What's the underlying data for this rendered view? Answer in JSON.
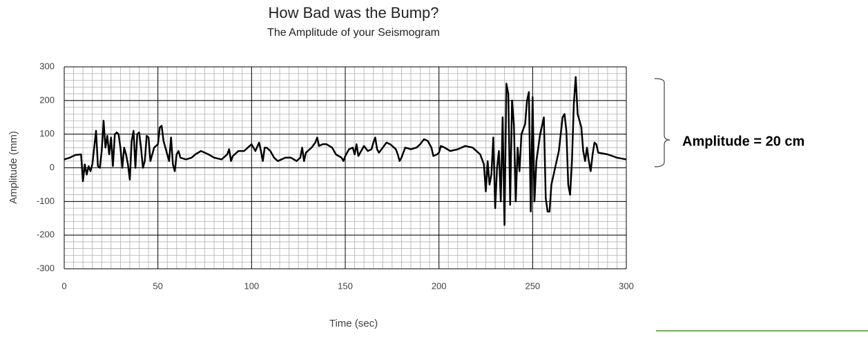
{
  "chart_data": {
    "type": "line",
    "title": "How Bad was the Bump?",
    "subtitle": "The Amplitude of your Seismogram",
    "x_label": "Time (sec)",
    "y_label": "Amplitude (mm)",
    "annotation": "Amplitude = 20 cm",
    "xlim": [
      0,
      300
    ],
    "xticks": [
      0,
      50,
      100,
      150,
      200,
      250,
      300
    ],
    "ylim": [
      -300,
      300
    ],
    "yticks": [
      -300,
      -200,
      -100,
      0,
      100,
      200,
      300
    ],
    "grid": true,
    "minor_grid": {
      "x": 5,
      "y": 20
    },
    "series": [
      {
        "color": "#000000",
        "x": [
          0,
          3,
          6,
          9,
          10,
          11,
          12,
          13,
          14,
          15,
          16,
          17,
          18,
          19,
          20,
          21,
          22,
          23,
          24,
          25,
          26,
          27,
          28,
          29,
          30,
          31,
          32,
          33,
          34,
          35,
          36,
          37,
          38,
          39,
          40,
          41,
          42,
          43,
          44,
          45,
          46,
          48,
          50,
          51,
          52,
          53,
          55,
          56,
          57,
          58,
          59,
          60,
          61,
          62,
          65,
          68,
          70,
          73,
          77,
          80,
          84,
          87,
          88,
          89,
          90,
          93,
          96,
          98,
          100,
          102,
          104,
          105,
          106,
          107,
          108,
          110,
          112,
          114,
          118,
          121,
          124,
          126,
          127,
          128,
          129,
          132,
          134,
          135,
          136,
          138,
          140,
          143,
          145,
          148,
          149,
          150,
          152,
          154,
          155,
          156,
          157,
          158,
          160,
          162,
          164,
          165,
          166,
          167,
          168,
          170,
          172,
          174,
          177,
          178,
          179,
          180,
          182,
          185,
          188,
          190,
          192,
          194,
          196,
          197,
          199,
          200,
          201,
          203,
          206,
          210,
          214,
          218,
          220,
          222,
          224,
          225,
          226,
          227,
          228,
          229,
          230,
          231,
          232,
          233,
          234,
          235,
          236,
          237,
          238,
          239,
          240,
          241,
          242,
          243,
          244,
          246,
          247,
          248,
          249,
          250,
          251,
          252,
          254,
          256,
          257,
          258,
          259,
          260,
          262,
          264,
          265,
          266,
          267,
          268,
          269,
          270,
          271,
          272,
          273,
          274,
          275,
          276,
          277,
          278,
          279,
          280,
          281,
          282,
          283,
          284,
          285,
          290,
          295,
          300
        ],
        "values": [
          25,
          30,
          38,
          40,
          -40,
          10,
          -20,
          5,
          -10,
          10,
          60,
          110,
          5,
          0,
          50,
          140,
          60,
          95,
          40,
          90,
          5,
          100,
          105,
          100,
          60,
          0,
          60,
          40,
          10,
          -35,
          80,
          110,
          0,
          100,
          105,
          60,
          0,
          20,
          95,
          90,
          20,
          60,
          70,
          120,
          125,
          80,
          40,
          20,
          90,
          10,
          -10,
          40,
          50,
          30,
          25,
          30,
          40,
          50,
          40,
          30,
          25,
          40,
          55,
          20,
          35,
          50,
          50,
          60,
          70,
          50,
          75,
          50,
          20,
          60,
          60,
          50,
          30,
          20,
          30,
          30,
          20,
          30,
          60,
          20,
          45,
          60,
          75,
          90,
          65,
          70,
          70,
          60,
          40,
          30,
          20,
          35,
          55,
          60,
          40,
          70,
          35,
          45,
          65,
          50,
          55,
          75,
          90,
          55,
          45,
          60,
          75,
          70,
          55,
          40,
          20,
          30,
          60,
          55,
          60,
          70,
          85,
          80,
          60,
          35,
          40,
          45,
          65,
          60,
          50,
          55,
          65,
          60,
          50,
          40,
          10,
          -70,
          20,
          -50,
          -20,
          90,
          -120,
          0,
          50,
          -100,
          150,
          -170,
          250,
          220,
          -110,
          200,
          130,
          -100,
          60,
          -10,
          100,
          130,
          200,
          225,
          -130,
          210,
          -100,
          20,
          100,
          150,
          -90,
          -130,
          -130,
          -50,
          0,
          50,
          100,
          150,
          160,
          110,
          -50,
          -80,
          20,
          190,
          270,
          160,
          140,
          120,
          50,
          20,
          60,
          20,
          -10,
          40,
          75,
          70,
          45,
          40,
          30,
          25
        ]
      }
    ]
  }
}
